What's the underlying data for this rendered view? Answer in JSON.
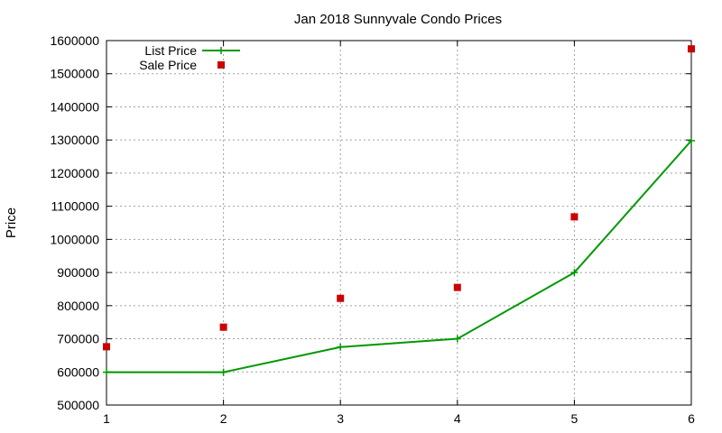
{
  "chart_data": {
    "type": "line",
    "title": "Jan 2018 Sunnyvale Condo Prices",
    "xlabel": "",
    "ylabel": "Price",
    "x": [
      1,
      2,
      3,
      4,
      5,
      6
    ],
    "xlim": [
      1,
      6
    ],
    "ylim": [
      500000,
      1600000
    ],
    "yticks": [
      500000,
      600000,
      700000,
      800000,
      900000,
      1000000,
      1100000,
      1200000,
      1300000,
      1400000,
      1500000,
      1600000
    ],
    "xticks": [
      1,
      2,
      3,
      4,
      5,
      6
    ],
    "grid": true,
    "legend_position": "top-left",
    "series": [
      {
        "name": "List Price",
        "kind": "line+plus-marker",
        "color": "#009900",
        "values": [
          599000,
          599000,
          675000,
          700000,
          900000,
          1298000
        ]
      },
      {
        "name": "Sale Price",
        "kind": "square-marker",
        "color": "#cc0000",
        "values": [
          676000,
          735000,
          822000,
          855000,
          1068000,
          1575000
        ]
      }
    ]
  }
}
